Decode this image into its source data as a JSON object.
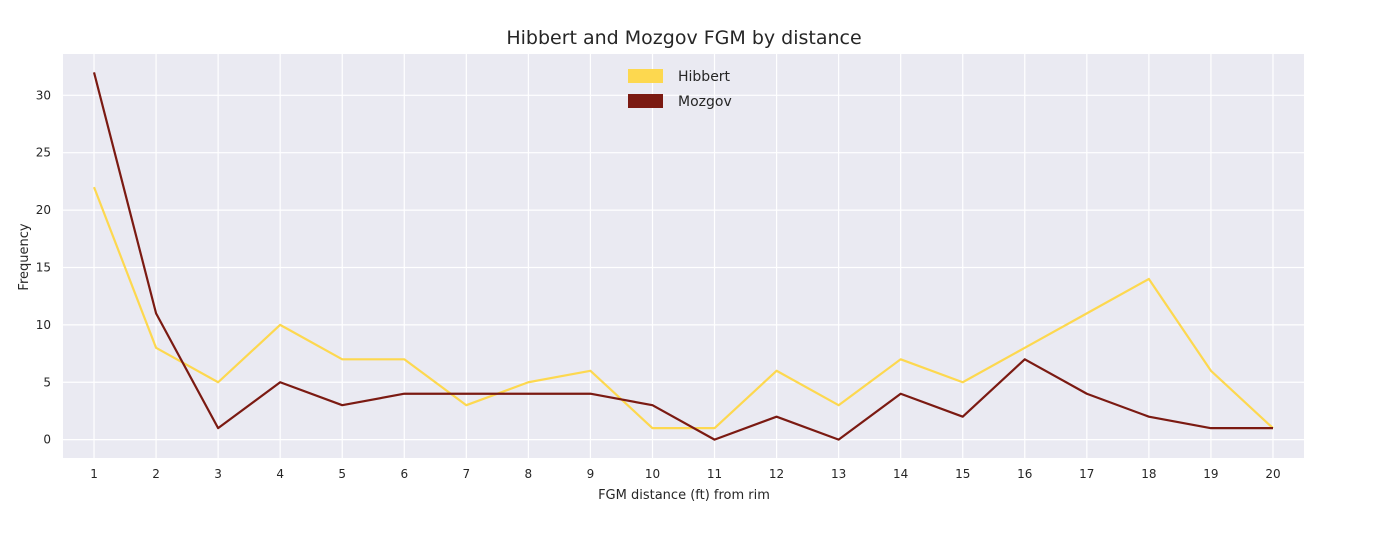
{
  "chart_data": {
    "type": "line",
    "title": "Hibbert and Mozgov FGM by distance",
    "xlabel": "FGM distance (ft) from rim",
    "ylabel": "Frequency",
    "x": [
      1,
      2,
      3,
      4,
      5,
      6,
      7,
      8,
      9,
      10,
      11,
      12,
      13,
      14,
      15,
      16,
      17,
      18,
      19,
      20
    ],
    "xlim": [
      0.5,
      20.5
    ],
    "ylim": [
      -1.6,
      33.6
    ],
    "yticks": [
      0,
      5,
      10,
      15,
      20,
      25,
      30
    ],
    "grid": true,
    "legend_position": "top-center",
    "background": "#eaeaf2",
    "series": [
      {
        "name": "Hibbert",
        "color": "#fdd84f",
        "values": [
          22,
          8,
          5,
          10,
          7,
          7,
          3,
          5,
          6,
          1,
          1,
          6,
          3,
          7,
          5,
          8,
          11,
          14,
          6,
          1
        ]
      },
      {
        "name": "Mozgov",
        "color": "#7b1a12",
        "values": [
          32,
          11,
          1,
          5,
          3,
          4,
          4,
          4,
          4,
          3,
          0,
          2,
          0,
          4,
          2,
          7,
          4,
          2,
          1,
          1
        ]
      }
    ]
  }
}
